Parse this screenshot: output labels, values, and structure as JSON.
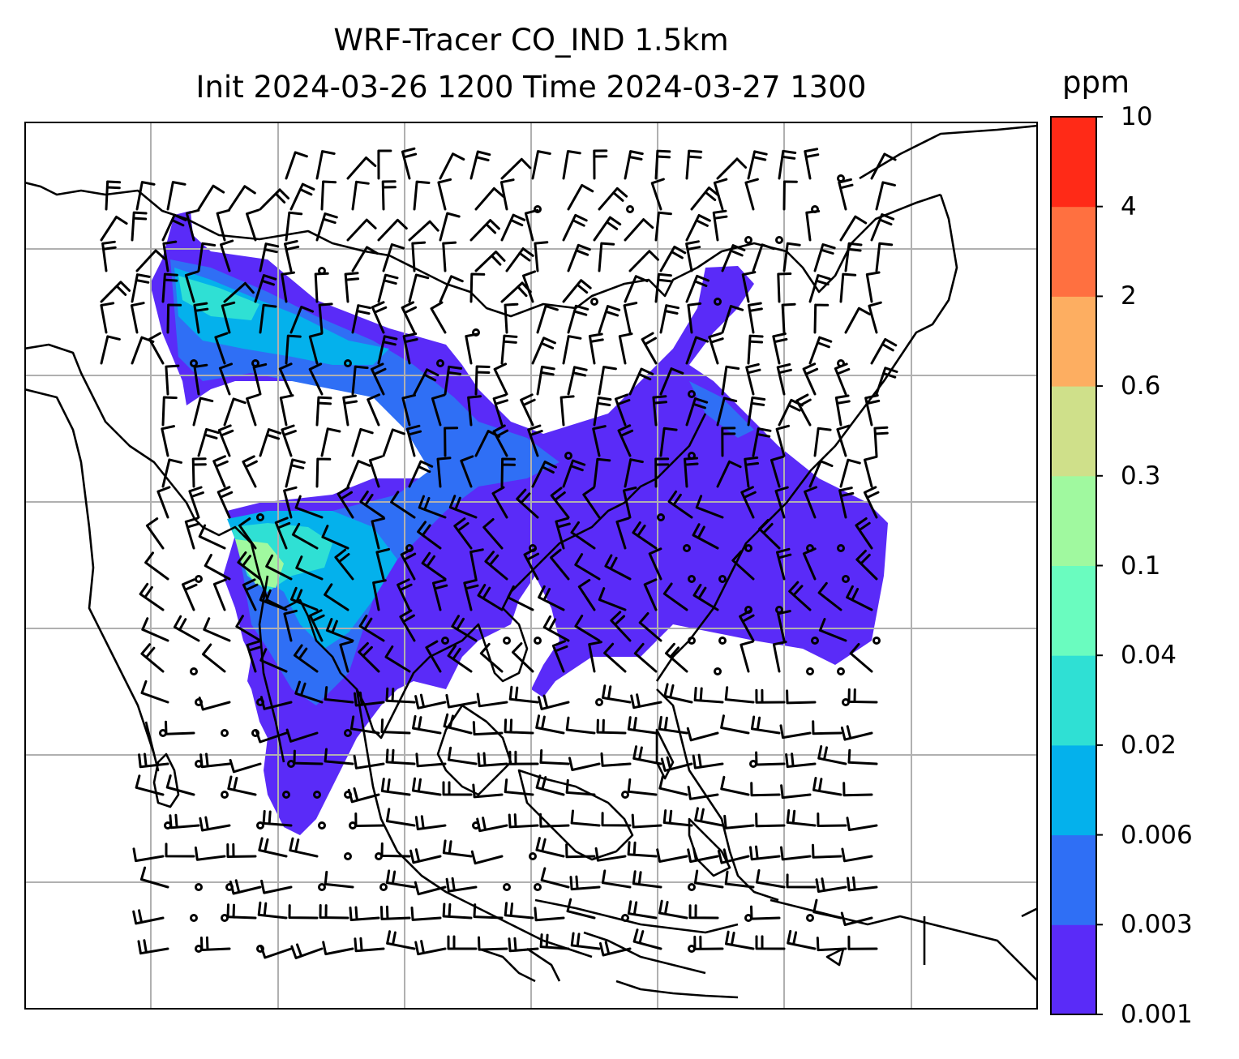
{
  "figure": {
    "title_line1": "WRF-Tracer CO_IND 1.5km",
    "title_line2": "Init 2024-03-26 1200 Time 2024-03-27 1300"
  },
  "colorbar": {
    "unit": "ppm",
    "levels": [
      "0.001",
      "0.003",
      "0.006",
      "0.02",
      "0.04",
      "0.1",
      "0.3",
      "0.6",
      "2",
      "4",
      "10"
    ],
    "colors": [
      "#5a2bf8",
      "#2f6ff5",
      "#04b1ec",
      "#2fe0d4",
      "#6afcbf",
      "#a0f99f",
      "#cfe08a",
      "#fdae61",
      "#ff7040",
      "#ff2a17"
    ]
  },
  "map": {
    "field": "CO_IND tracer concentration with wind barbs",
    "gridlines": true
  }
}
